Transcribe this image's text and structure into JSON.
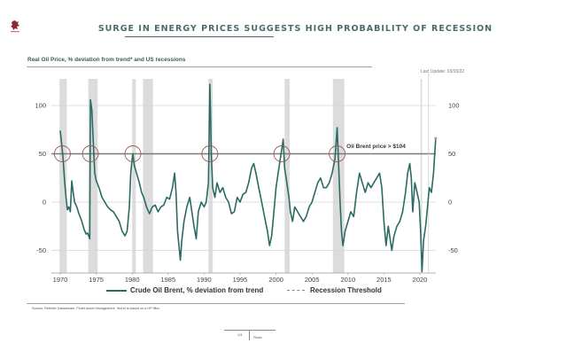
{
  "header": {
    "title": "SURGE IN ENERGY PRICES SUGGESTS HIGH PROBABILITY OF RECESSION",
    "logo_icon": "heraldic-lion-logo-icon",
    "accent_color": "#4a6b6e",
    "logo_color": "#8b2a35"
  },
  "chart_section": {
    "subtitle": "Real Oil Price, % deviation from trend* and US recessions",
    "last_update": "Last Update: 03/03/22"
  },
  "chart_data": {
    "type": "line",
    "title": "Real Oil Price, % deviation from trend* and US recessions",
    "xlabel": "",
    "ylabel": "",
    "xlim": [
      1968.5,
      2023.5
    ],
    "ylim": [
      -70,
      128
    ],
    "x_ticks": [
      1970,
      1975,
      1980,
      1985,
      1990,
      1995,
      2000,
      2005,
      2010,
      2015,
      2020
    ],
    "y_ticks": [
      -50,
      0,
      50,
      100
    ],
    "y_tick_labels": [
      "-50",
      "0",
      "50",
      "100"
    ],
    "grid": "horizontal",
    "legend_position": "bottom",
    "legend": [
      "Crude Oil Brent, % deviation from trend",
      "Recession Threshold"
    ],
    "series": [
      {
        "name": "Crude Oil Brent, % deviation from trend",
        "color": "#2a6b63",
        "points": [
          [
            1970.0,
            74
          ],
          [
            1970.2,
            60
          ],
          [
            1970.4,
            45
          ],
          [
            1970.6,
            22
          ],
          [
            1970.8,
            5
          ],
          [
            1971.0,
            -8
          ],
          [
            1971.2,
            -5
          ],
          [
            1971.4,
            -10
          ],
          [
            1971.6,
            22
          ],
          [
            1971.8,
            10
          ],
          [
            1972.0,
            0
          ],
          [
            1972.3,
            -5
          ],
          [
            1972.6,
            -12
          ],
          [
            1973.0,
            -20
          ],
          [
            1973.3,
            -28
          ],
          [
            1973.6,
            -33
          ],
          [
            1973.8,
            -32
          ],
          [
            1974.0,
            -36
          ],
          [
            1974.1,
            -38
          ],
          [
            1974.2,
            106
          ],
          [
            1974.4,
            95
          ],
          [
            1974.6,
            60
          ],
          [
            1974.8,
            30
          ],
          [
            1975.0,
            22
          ],
          [
            1975.4,
            15
          ],
          [
            1975.8,
            5
          ],
          [
            1976.2,
            0
          ],
          [
            1976.6,
            -5
          ],
          [
            1977.0,
            -8
          ],
          [
            1977.4,
            -10
          ],
          [
            1977.8,
            -15
          ],
          [
            1978.2,
            -20
          ],
          [
            1978.6,
            -30
          ],
          [
            1979.0,
            -35
          ],
          [
            1979.3,
            -30
          ],
          [
            1979.6,
            -5
          ],
          [
            1979.8,
            30
          ],
          [
            1980.0,
            45
          ],
          [
            1980.1,
            50
          ],
          [
            1980.3,
            38
          ],
          [
            1980.6,
            30
          ],
          [
            1981.0,
            20
          ],
          [
            1981.3,
            10
          ],
          [
            1981.6,
            5
          ],
          [
            1982.0,
            -5
          ],
          [
            1982.4,
            -12
          ],
          [
            1982.8,
            -5
          ],
          [
            1983.2,
            -3
          ],
          [
            1983.6,
            -10
          ],
          [
            1984.0,
            -5
          ],
          [
            1984.4,
            -3
          ],
          [
            1984.8,
            5
          ],
          [
            1985.2,
            3
          ],
          [
            1985.6,
            15
          ],
          [
            1985.9,
            30
          ],
          [
            1986.1,
            10
          ],
          [
            1986.3,
            -30
          ],
          [
            1986.5,
            -45
          ],
          [
            1986.7,
            -60
          ],
          [
            1986.9,
            -40
          ],
          [
            1987.2,
            -20
          ],
          [
            1987.6,
            -5
          ],
          [
            1988.0,
            5
          ],
          [
            1988.3,
            -10
          ],
          [
            1988.6,
            -25
          ],
          [
            1988.9,
            -38
          ],
          [
            1989.2,
            -10
          ],
          [
            1989.6,
            0
          ],
          [
            1990.0,
            -5
          ],
          [
            1990.3,
            0
          ],
          [
            1990.6,
            20
          ],
          [
            1990.8,
            122
          ],
          [
            1990.9,
            90
          ],
          [
            1991.0,
            50
          ],
          [
            1991.2,
            15
          ],
          [
            1991.5,
            5
          ],
          [
            1991.8,
            20
          ],
          [
            1992.2,
            10
          ],
          [
            1992.6,
            15
          ],
          [
            1993.0,
            5
          ],
          [
            1993.4,
            0
          ],
          [
            1993.8,
            -12
          ],
          [
            1994.2,
            -10
          ],
          [
            1994.6,
            5
          ],
          [
            1995.0,
            0
          ],
          [
            1995.4,
            8
          ],
          [
            1995.8,
            10
          ],
          [
            1996.2,
            20
          ],
          [
            1996.6,
            35
          ],
          [
            1996.9,
            40
          ],
          [
            1997.2,
            30
          ],
          [
            1997.6,
            15
          ],
          [
            1998.0,
            0
          ],
          [
            1998.4,
            -15
          ],
          [
            1998.8,
            -30
          ],
          [
            1999.1,
            -45
          ],
          [
            1999.4,
            -35
          ],
          [
            1999.7,
            -10
          ],
          [
            2000.0,
            15
          ],
          [
            2000.4,
            35
          ],
          [
            2000.8,
            55
          ],
          [
            2001.0,
            65
          ],
          [
            2001.2,
            35
          ],
          [
            2001.5,
            20
          ],
          [
            2001.8,
            5
          ],
          [
            2002.0,
            -10
          ],
          [
            2002.3,
            -20
          ],
          [
            2002.6,
            -5
          ],
          [
            2003.0,
            -10
          ],
          [
            2003.4,
            -15
          ],
          [
            2003.8,
            -20
          ],
          [
            2004.2,
            -15
          ],
          [
            2004.6,
            -5
          ],
          [
            2005.0,
            0
          ],
          [
            2005.4,
            10
          ],
          [
            2005.8,
            20
          ],
          [
            2006.2,
            25
          ],
          [
            2006.6,
            15
          ],
          [
            2007.0,
            15
          ],
          [
            2007.4,
            20
          ],
          [
            2007.8,
            30
          ],
          [
            2008.2,
            45
          ],
          [
            2008.5,
            77
          ],
          [
            2008.7,
            40
          ],
          [
            2008.9,
            0
          ],
          [
            2009.1,
            -30
          ],
          [
            2009.3,
            -45
          ],
          [
            2009.6,
            -30
          ],
          [
            2010.0,
            -20
          ],
          [
            2010.4,
            -10
          ],
          [
            2010.8,
            -15
          ],
          [
            2011.2,
            10
          ],
          [
            2011.6,
            30
          ],
          [
            2012.0,
            20
          ],
          [
            2012.4,
            10
          ],
          [
            2012.8,
            20
          ],
          [
            2013.2,
            15
          ],
          [
            2013.6,
            20
          ],
          [
            2014.0,
            25
          ],
          [
            2014.4,
            30
          ],
          [
            2014.7,
            15
          ],
          [
            2015.0,
            -20
          ],
          [
            2015.3,
            -45
          ],
          [
            2015.6,
            -25
          ],
          [
            2015.9,
            -40
          ],
          [
            2016.1,
            -50
          ],
          [
            2016.4,
            -35
          ],
          [
            2016.8,
            -25
          ],
          [
            2017.2,
            -20
          ],
          [
            2017.6,
            -10
          ],
          [
            2018.0,
            10
          ],
          [
            2018.3,
            30
          ],
          [
            2018.6,
            40
          ],
          [
            2018.8,
            25
          ],
          [
            2019.0,
            -10
          ],
          [
            2019.3,
            20
          ],
          [
            2019.6,
            10
          ],
          [
            2019.9,
            0
          ],
          [
            2020.1,
            -30
          ],
          [
            2020.3,
            -72
          ],
          [
            2020.5,
            -40
          ],
          [
            2020.8,
            -25
          ],
          [
            2021.0,
            -10
          ],
          [
            2021.3,
            15
          ],
          [
            2021.6,
            10
          ],
          [
            2021.9,
            30
          ],
          [
            2022.1,
            55
          ],
          [
            2022.2,
            66
          ]
        ]
      },
      {
        "name": "Recession Threshold",
        "color": "#8a8a8a",
        "style": "dashed",
        "y": 50
      }
    ],
    "recessions": [
      [
        1969.9,
        1970.9
      ],
      [
        1973.9,
        1975.2
      ],
      [
        1980.0,
        1980.5
      ],
      [
        1981.5,
        1982.9
      ],
      [
        1990.6,
        1991.2
      ],
      [
        2001.2,
        2001.9
      ],
      [
        2007.9,
        2009.5
      ],
      [
        2020.1,
        2020.3
      ]
    ],
    "threshold_line": {
      "y": 50,
      "color": "#7a7a7a"
    },
    "threshold_crossings": [
      1970.3,
      1974.2,
      1980.1,
      1990.8,
      2000.8,
      2008.5
    ],
    "circle_color": "#9b5a55",
    "annotations": [
      {
        "text": "Oil Brent price > $104",
        "x": 2009.8,
        "y": 56
      }
    ],
    "recession_color": "#dcdcdc"
  },
  "legend": {
    "items": [
      {
        "label": "Crude Oil Brent, % deviation from trend",
        "style": "solid"
      },
      {
        "label": "Recession Threshold",
        "style": "dashed"
      }
    ]
  },
  "footer": {
    "source": "Source: Refinitiv Datastream, Pictet Asset Management. *trend is based on a HP filter.",
    "page_number": "1/3",
    "brand": "Pictet"
  }
}
